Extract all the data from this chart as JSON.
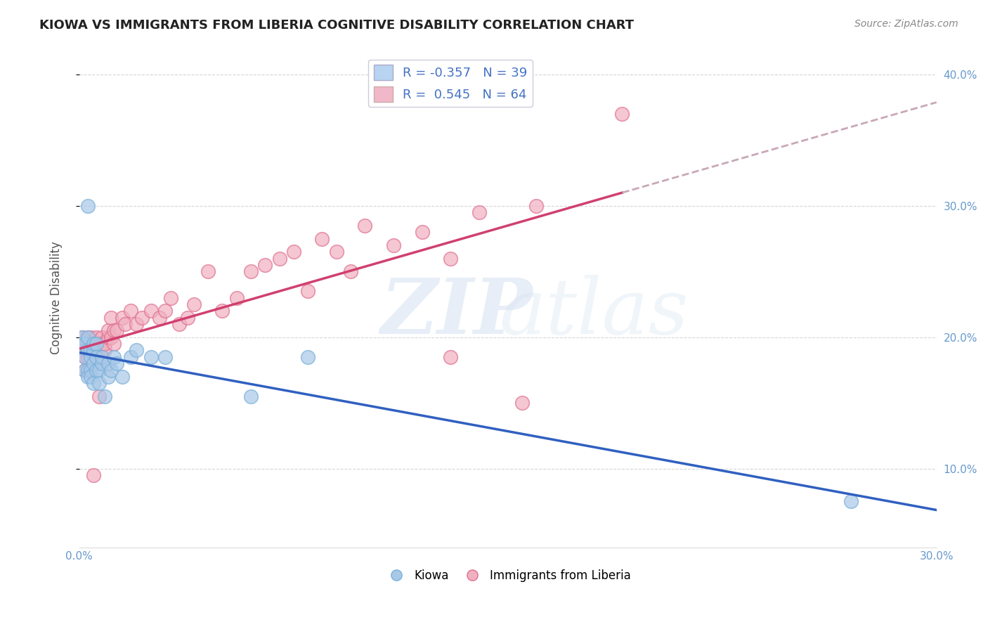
{
  "title": "KIOWA VS IMMIGRANTS FROM LIBERIA COGNITIVE DISABILITY CORRELATION CHART",
  "source": "Source: ZipAtlas.com",
  "ylabel": "Cognitive Disability",
  "xlim": [
    0.0,
    0.3
  ],
  "ylim": [
    0.04,
    0.42
  ],
  "xticks": [
    0.0,
    0.05,
    0.1,
    0.15,
    0.2,
    0.25,
    0.3
  ],
  "yticks": [
    0.1,
    0.2,
    0.3,
    0.4
  ],
  "ytick_labels": [
    "10.0%",
    "20.0%",
    "30.0%",
    "40.0%"
  ],
  "xtick_labels": [
    "0.0%",
    "",
    "",
    "",
    "",
    "",
    "30.0%"
  ],
  "kiowa_color": "#a8c8e8",
  "kiowa_edge_color": "#7ab0d8",
  "liberia_color": "#f0b0c0",
  "liberia_edge_color": "#e07090",
  "kiowa_line_color": "#3060c0",
  "liberia_line_color": "#d04070",
  "liberia_dashed_color": "#c8a0b0",
  "background_color": "#ffffff",
  "legend_box_color1": "#b8d4f0",
  "legend_box_color2": "#f0b8c8",
  "legend_text_color": "#4472c4",
  "kiowa_x": [
    0.001,
    0.001,
    0.002,
    0.002,
    0.002,
    0.003,
    0.003,
    0.003,
    0.003,
    0.004,
    0.004,
    0.004,
    0.004,
    0.005,
    0.005,
    0.005,
    0.005,
    0.006,
    0.006,
    0.006,
    0.007,
    0.007,
    0.008,
    0.008,
    0.009,
    0.01,
    0.01,
    0.011,
    0.012,
    0.013,
    0.015,
    0.018,
    0.02,
    0.025,
    0.03,
    0.06,
    0.08,
    0.27,
    0.003
  ],
  "kiowa_y": [
    0.195,
    0.2,
    0.195,
    0.185,
    0.175,
    0.175,
    0.19,
    0.2,
    0.17,
    0.19,
    0.175,
    0.185,
    0.17,
    0.19,
    0.195,
    0.18,
    0.165,
    0.195,
    0.185,
    0.175,
    0.175,
    0.165,
    0.18,
    0.185,
    0.155,
    0.17,
    0.18,
    0.175,
    0.185,
    0.18,
    0.17,
    0.185,
    0.19,
    0.185,
    0.185,
    0.155,
    0.185,
    0.075,
    0.3
  ],
  "liberia_x": [
    0.001,
    0.001,
    0.002,
    0.002,
    0.002,
    0.003,
    0.003,
    0.003,
    0.004,
    0.004,
    0.004,
    0.005,
    0.005,
    0.005,
    0.006,
    0.006,
    0.006,
    0.007,
    0.007,
    0.008,
    0.008,
    0.009,
    0.009,
    0.01,
    0.01,
    0.011,
    0.011,
    0.012,
    0.012,
    0.013,
    0.015,
    0.016,
    0.018,
    0.02,
    0.022,
    0.025,
    0.028,
    0.03,
    0.032,
    0.035,
    0.038,
    0.04,
    0.045,
    0.05,
    0.055,
    0.06,
    0.065,
    0.07,
    0.075,
    0.08,
    0.085,
    0.09,
    0.095,
    0.1,
    0.11,
    0.12,
    0.13,
    0.14,
    0.16,
    0.19,
    0.005,
    0.007,
    0.13,
    0.155
  ],
  "liberia_y": [
    0.2,
    0.19,
    0.195,
    0.185,
    0.175,
    0.2,
    0.195,
    0.185,
    0.2,
    0.19,
    0.175,
    0.195,
    0.18,
    0.195,
    0.2,
    0.19,
    0.18,
    0.195,
    0.185,
    0.2,
    0.195,
    0.19,
    0.195,
    0.2,
    0.205,
    0.2,
    0.215,
    0.205,
    0.195,
    0.205,
    0.215,
    0.21,
    0.22,
    0.21,
    0.215,
    0.22,
    0.215,
    0.22,
    0.23,
    0.21,
    0.215,
    0.225,
    0.25,
    0.22,
    0.23,
    0.25,
    0.255,
    0.26,
    0.265,
    0.235,
    0.275,
    0.265,
    0.25,
    0.285,
    0.27,
    0.28,
    0.26,
    0.295,
    0.3,
    0.37,
    0.095,
    0.155,
    0.185,
    0.15
  ]
}
